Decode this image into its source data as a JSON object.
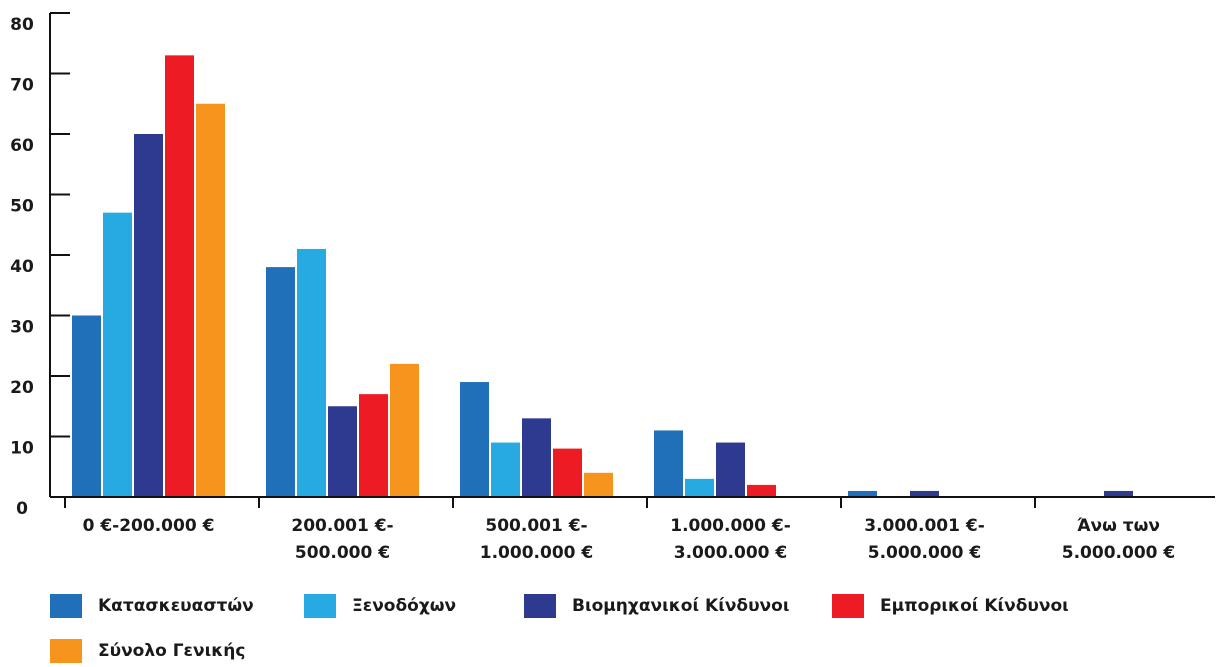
{
  "chart_data": {
    "type": "bar",
    "title": "",
    "xlabel": "",
    "ylabel": "",
    "ylim": [
      0,
      80
    ],
    "yticks": [
      0,
      10,
      20,
      30,
      40,
      50,
      60,
      70,
      80
    ],
    "grid": false,
    "legend_position": "bottom",
    "categories": [
      [
        "0 €-200.000 €"
      ],
      [
        "200.001 €-",
        "500.000 €"
      ],
      [
        "500.001 €-",
        "1.000.000 €"
      ],
      [
        "1.000.000 €-",
        "3.000.000 €"
      ],
      [
        "3.000.001 €-",
        "5.000.000 €"
      ],
      [
        "Άνω των",
        "5.000.000 €"
      ]
    ],
    "series": [
      {
        "name": "Κατασκευαστών",
        "color": "#1f6fb9",
        "values": [
          30,
          38,
          19,
          11,
          1,
          0
        ]
      },
      {
        "name": "Ξενοδόχων",
        "color": "#27a9e1",
        "values": [
          47,
          41,
          9,
          3,
          0,
          0
        ]
      },
      {
        "name": "Βιομηχανικοί Κίνδυνοι",
        "color": "#2e3a8f",
        "values": [
          60,
          15,
          13,
          9,
          1,
          1
        ]
      },
      {
        "name": "Εμπορικοί Κίνδυνοι",
        "color": "#ed1c24",
        "values": [
          73,
          17,
          8,
          2,
          0,
          0
        ]
      },
      {
        "name": "Σύνολο Γενικής",
        "color": "#f7941d",
        "values": [
          65,
          22,
          4,
          0,
          0,
          0
        ]
      }
    ]
  }
}
